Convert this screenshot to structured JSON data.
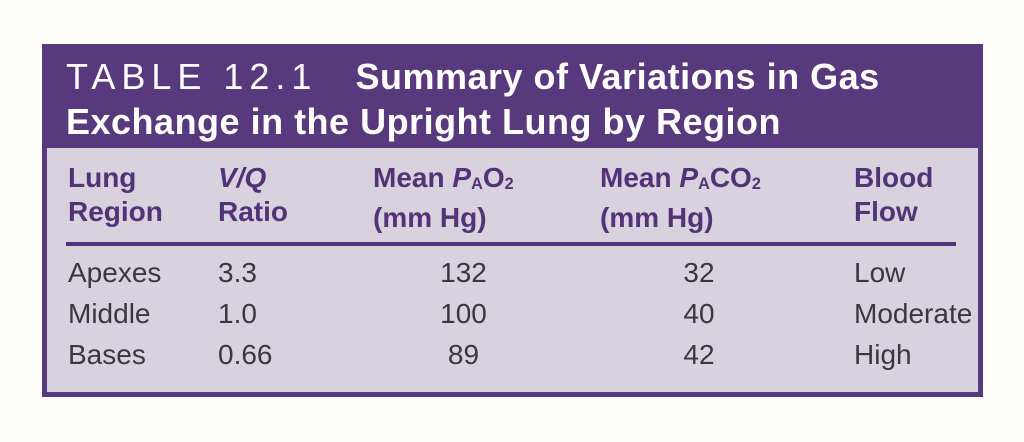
{
  "colors": {
    "page-bg": "#fffefa",
    "band": "#59397d",
    "border": "#59397d",
    "body-bg": "#d8d1de",
    "header-text": "#533377",
    "rule": "#53317a",
    "body-text": "#3a383b",
    "title-text": "#ffffff"
  },
  "table": {
    "title_label": "TABLE 12.1",
    "title_line1": "Summary of Variations in Gas",
    "title_line2": "Exchange in the Upright Lung by Region",
    "columns": [
      {
        "header_line1": "Lung",
        "header_line2": "Region"
      },
      {
        "header_line1": "V/Q",
        "header_line2": "Ratio"
      },
      {
        "header_word": "Mean",
        "symbol": "P",
        "symbol_sub": "A",
        "formula": "O",
        "formula_sub": "2",
        "header_line2": "(mm Hg)"
      },
      {
        "header_word": "Mean",
        "symbol": "P",
        "symbol_sub": "A",
        "formula": "CO",
        "formula_sub": "2",
        "header_line2": "(mm Hg)"
      },
      {
        "header_line1": "Blood",
        "header_line2": "Flow"
      }
    ],
    "rows": [
      {
        "region": "Apexes",
        "vq_ratio": "3.3",
        "pao2": "132",
        "paco2": "32",
        "blood_flow": "Low"
      },
      {
        "region": "Middle",
        "vq_ratio": "1.0",
        "pao2": "100",
        "paco2": "40",
        "blood_flow": "Moderate"
      },
      {
        "region": "Bases",
        "vq_ratio": "0.66",
        "pao2": "89",
        "paco2": "42",
        "blood_flow": "High"
      }
    ]
  }
}
